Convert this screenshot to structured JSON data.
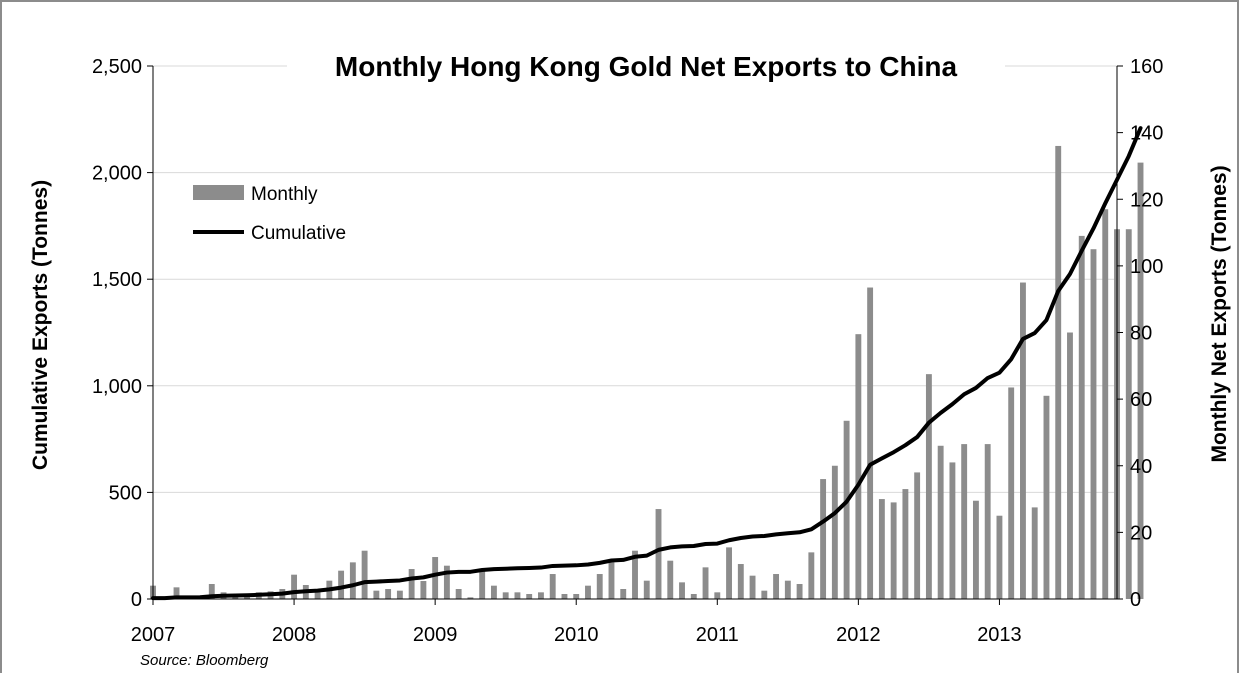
{
  "chart_data": {
    "type": "bar",
    "title": "Monthly Hong Kong Gold Net Exports to China",
    "source": "Source: Bloomberg",
    "ylabel_left": "Cumulative Exports (Tonnes)",
    "ylabel_right": "Monthly Net Exports (Tonnes)",
    "xlabel": "",
    "ylim_left": [
      0,
      2500
    ],
    "ylim_right": [
      0,
      160
    ],
    "yticks_left": [
      "0",
      "500",
      "1,000",
      "1,500",
      "2,000",
      "2,500"
    ],
    "yticks_right": [
      "0",
      "20",
      "40",
      "60",
      "80",
      "100",
      "120",
      "140",
      "160"
    ],
    "xticks": [
      "2007",
      "2008",
      "2009",
      "2010",
      "2011",
      "2012",
      "2013"
    ],
    "grid": true,
    "legend_position": "top-left",
    "series": [
      {
        "name": "Monthly",
        "axis": "right",
        "style": "bar",
        "color": "#8c8c8c",
        "values": [
          4,
          0,
          3.5,
          0,
          1,
          4.5,
          2,
          1.5,
          1.2,
          2,
          2.3,
          3,
          7.3,
          4.2,
          3,
          5.5,
          8.5,
          11,
          14.5,
          2.5,
          3,
          2.5,
          9,
          5.4,
          12.6,
          10,
          3,
          0.5,
          8.5,
          4,
          2,
          2,
          1.5,
          2,
          7.5,
          1.5,
          1.5,
          4,
          7.5,
          11,
          3,
          14.5,
          5.5,
          27,
          11.5,
          5,
          1.5,
          9.5,
          2,
          15.5,
          10.5,
          7,
          2.5,
          7.5,
          5.5,
          4.5,
          14,
          36,
          40,
          53.5,
          79.5,
          93.5,
          30,
          29,
          33,
          38,
          67.5,
          46,
          41,
          46.5,
          29.5,
          46.5,
          25,
          63.5,
          95,
          27.5,
          61,
          136,
          80,
          109,
          105,
          117,
          111,
          111,
          131
        ]
      },
      {
        "name": "Cumulative",
        "axis": "left",
        "style": "line",
        "color": "#000000",
        "values": [
          4,
          4,
          7.5,
          7.5,
          8.5,
          13,
          15,
          16.5,
          17.7,
          19.7,
          22,
          25,
          32.3,
          36.5,
          39.5,
          45,
          53.5,
          64.5,
          79,
          81.5,
          84.5,
          87,
          96,
          101.4,
          114,
          124,
          127,
          127.5,
          136,
          140,
          142,
          144,
          145.5,
          147.5,
          155,
          156.5,
          158,
          162,
          169.5,
          180.5,
          183.5,
          198,
          203.5,
          230.5,
          242,
          247,
          248.5,
          258,
          260,
          275.5,
          286,
          293,
          295.5,
          303,
          308.5,
          313,
          327,
          363,
          403,
          456.5,
          536,
          629.5,
          659.5,
          688.5,
          721.5,
          759.5,
          827,
          873,
          914,
          960.5,
          990,
          1036.5,
          1061.5,
          1125,
          1220,
          1247.5,
          1308.5,
          1444.5,
          1524.5,
          1633.5,
          1738.5,
          1855.5,
          1966.5,
          2077.5,
          2208.5
        ]
      }
    ]
  }
}
